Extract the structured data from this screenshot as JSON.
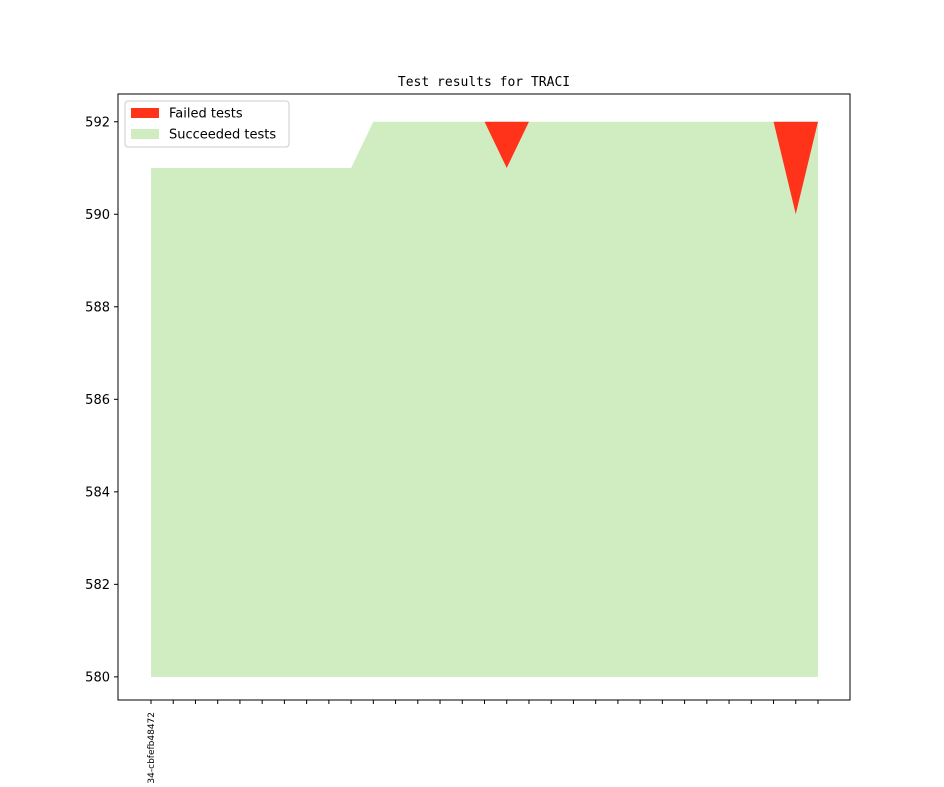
{
  "chart_data": {
    "type": "area",
    "title": "Test results for TRACI",
    "xlabel": "",
    "ylabel": "",
    "ylim": [
      579.5,
      592.6
    ],
    "yticks": [
      580,
      582,
      584,
      586,
      588,
      590,
      592
    ],
    "x_count": 31,
    "x_tick_labels": [
      "34-cbfefb48472"
    ],
    "baseline": 580,
    "series": [
      {
        "name": "Failed tests",
        "color": "#ff3319",
        "values": [
          0,
          0,
          0,
          0,
          0,
          0,
          0,
          0,
          0,
          0,
          0,
          0,
          0,
          0,
          0,
          0,
          1,
          0,
          0,
          0,
          0,
          0,
          0,
          0,
          0,
          0,
          0,
          0,
          0,
          2,
          0
        ]
      },
      {
        "name": "Succeeded tests",
        "color": "#cfedc0",
        "values": [
          591,
          591,
          591,
          591,
          591,
          591,
          591,
          591,
          591,
          591,
          592,
          592,
          592,
          592,
          592,
          592,
          591,
          592,
          592,
          592,
          592,
          592,
          592,
          592,
          592,
          592,
          592,
          592,
          592,
          590,
          592
        ]
      }
    ],
    "totals": [
      591,
      591,
      591,
      591,
      591,
      591,
      591,
      591,
      591,
      591,
      592,
      592,
      592,
      592,
      592,
      592,
      592,
      592,
      592,
      592,
      592,
      592,
      592,
      592,
      592,
      592,
      592,
      592,
      592,
      592,
      592
    ],
    "legend_position": "upper-left",
    "grid": false
  }
}
